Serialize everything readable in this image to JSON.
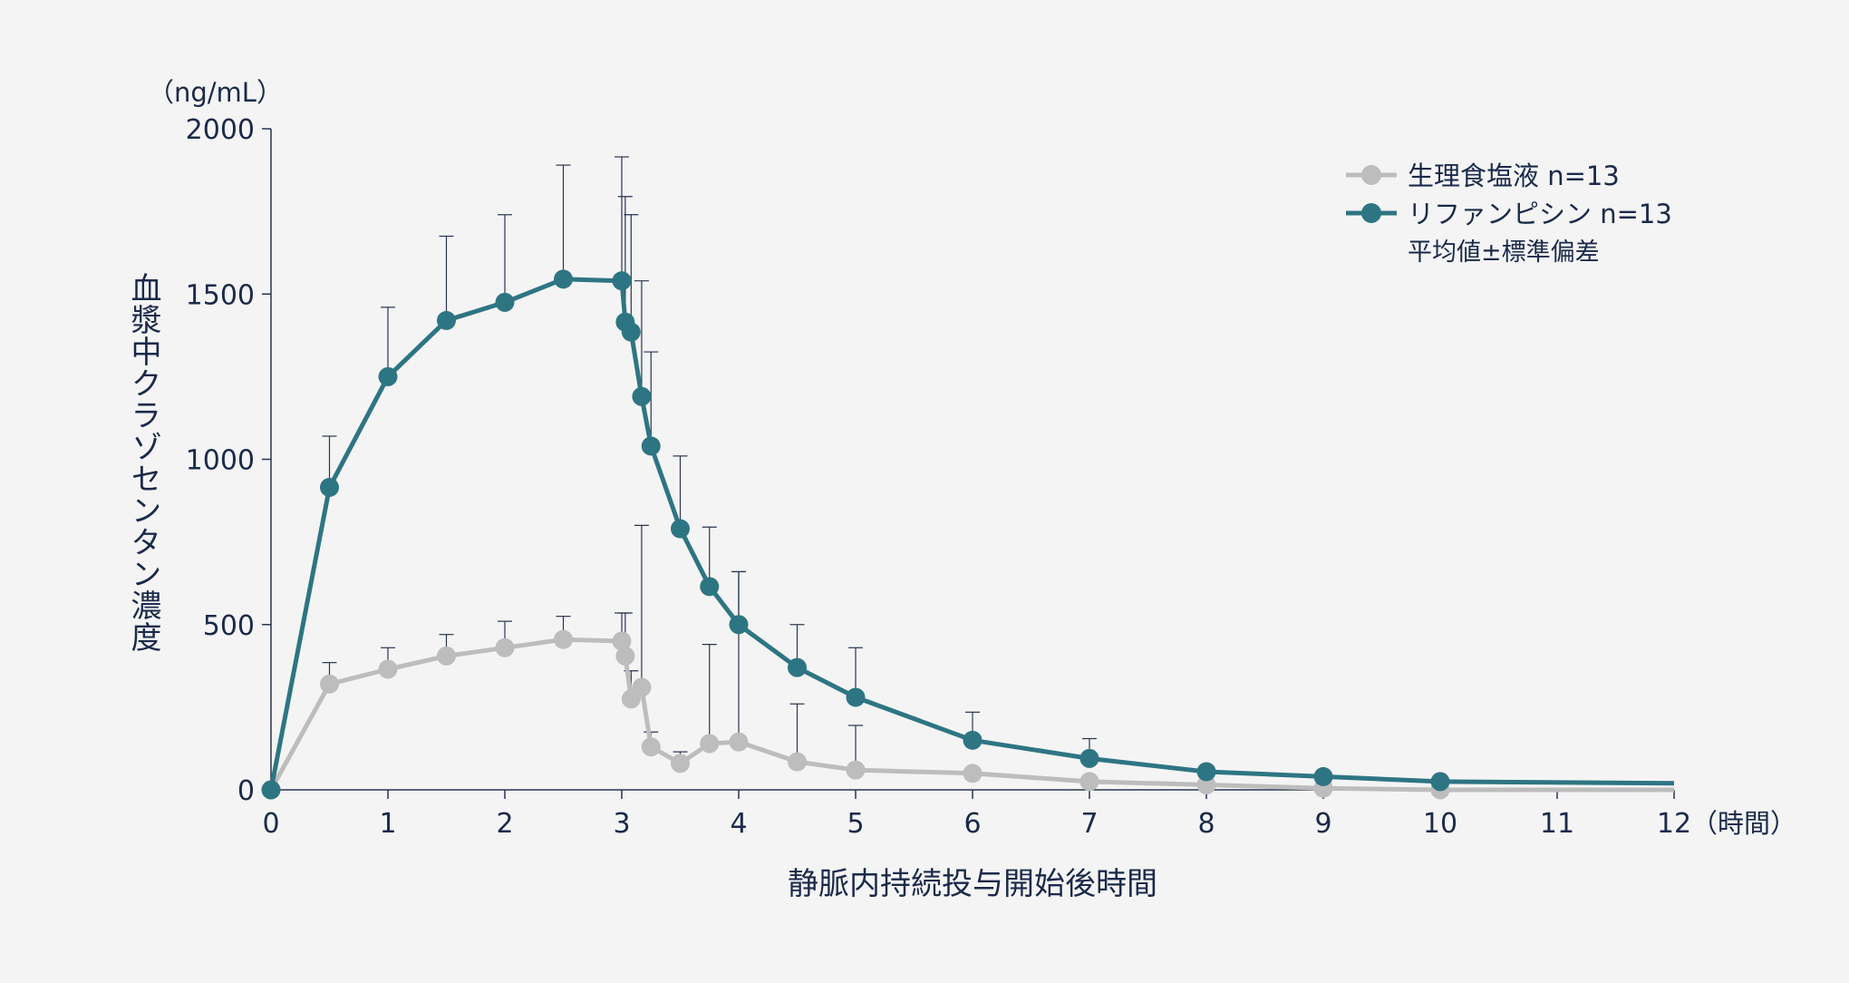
{
  "chart_data": {
    "type": "line",
    "y_unit": "（ng/mL）",
    "ylabel": "血漿中クラゾセンタン濃度",
    "xlabel": "静脈内持続投与開始後時間",
    "x_unit": "（時間）",
    "xlim": [
      0,
      12
    ],
    "ylim": [
      0,
      2000
    ],
    "xticks": [
      0,
      1,
      2,
      3,
      4,
      5,
      6,
      7,
      8,
      9,
      10,
      11,
      12
    ],
    "yticks": [
      0,
      500,
      1000,
      1500,
      2000
    ],
    "legend_position": "top-right",
    "legend_note": "平均値±標準偏差",
    "grid": false,
    "series": [
      {
        "name": "生理食塩液 n=13",
        "color": "#bdbdbd",
        "x": [
          0,
          0.5,
          1,
          1.5,
          2,
          2.5,
          3,
          3.03,
          3.08,
          3.17,
          3.25,
          3.5,
          3.75,
          4,
          4.5,
          5,
          6,
          7,
          8,
          9,
          10,
          12
        ],
        "y": [
          0,
          320,
          365,
          405,
          430,
          455,
          450,
          405,
          275,
          310,
          130,
          80,
          140,
          145,
          85,
          60,
          50,
          25,
          15,
          5,
          0,
          0
        ],
        "sd_upper": [
          null,
          385,
          430,
          470,
          510,
          525,
          535,
          535,
          360,
          800,
          175,
          115,
          440,
          660,
          260,
          195,
          null,
          null,
          null,
          null,
          null,
          null
        ]
      },
      {
        "name": "リファンピシン n=13",
        "color": "#2e7583",
        "x": [
          0,
          0.5,
          1,
          1.5,
          2,
          2.5,
          3,
          3.03,
          3.08,
          3.17,
          3.25,
          3.5,
          3.75,
          4,
          4.5,
          5,
          6,
          7,
          8,
          9,
          10,
          12
        ],
        "y": [
          0,
          915,
          1250,
          1420,
          1475,
          1545,
          1540,
          1415,
          1385,
          1190,
          1040,
          790,
          615,
          500,
          370,
          280,
          150,
          95,
          55,
          40,
          25,
          20
        ],
        "sd_upper": [
          null,
          1070,
          1460,
          1675,
          1740,
          1890,
          1915,
          1795,
          1740,
          1540,
          1325,
          1010,
          795,
          660,
          500,
          430,
          235,
          155,
          null,
          null,
          null,
          null
        ]
      }
    ]
  }
}
